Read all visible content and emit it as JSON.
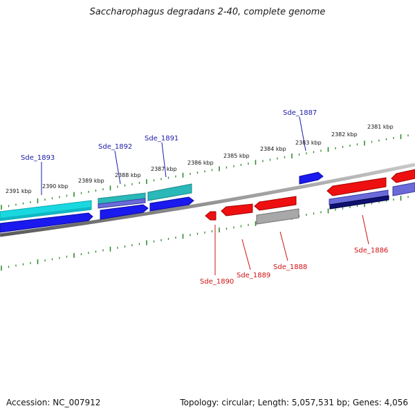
{
  "title": "Saccharophagus degradans 2-40, complete genome",
  "footer": {
    "accession": "Accession: NC_007912",
    "summary": "Topology: circular; Length: 5,057,531 bp; Genes: 4,056"
  },
  "colors": {
    "backbone": "#808080",
    "tick": "#2e8b2e",
    "forward_label": "#1a1aa8",
    "reverse_label": "#d01010",
    "red": "#ee1010",
    "blue": "#1a1aee",
    "cyan": "#1ad8e0",
    "teal": "#2ab8b8",
    "slate": "#6a6ad8",
    "navy": "#101070",
    "grey": "#a8a8a8"
  },
  "kbp_labels": [
    "2391 kbp",
    "2390 kbp",
    "2389 kbp",
    "2388 kbp",
    "2387 kbp",
    "2386 kbp",
    "2385 kbp",
    "2384 kbp",
    "2383 kbp",
    "2382 kbp",
    "2381 kbp"
  ],
  "gene_labels": {
    "forward": [
      "Sde_1893",
      "Sde_1892",
      "Sde_1891",
      "Sde_1887"
    ],
    "reverse": [
      "Sde_1890",
      "Sde_1889",
      "Sde_1888",
      "Sde_1886"
    ]
  }
}
